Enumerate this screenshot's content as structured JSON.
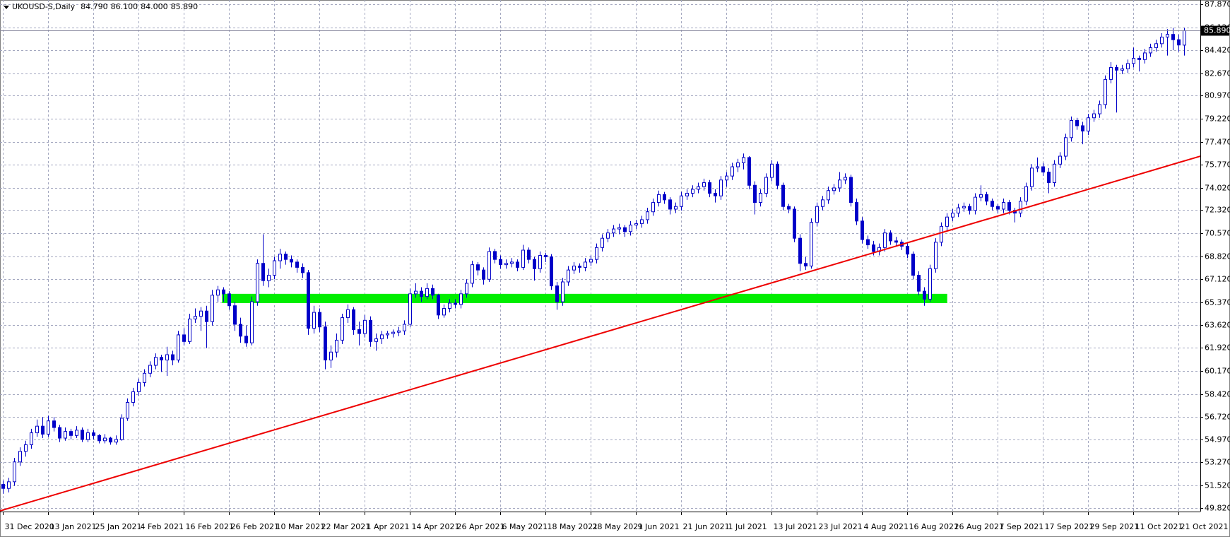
{
  "chart_data": {
    "type": "candlestick",
    "title": "UKOUSD-S,Daily",
    "header_labels": [
      "84.790",
      "86.100",
      "84.000",
      "85.890"
    ],
    "candles": [
      [
        51.6,
        51.9,
        50.9,
        51.3
      ],
      [
        51.3,
        52.1,
        51.0,
        51.8
      ],
      [
        51.8,
        53.6,
        51.5,
        53.3
      ],
      [
        53.3,
        54.4,
        53.0,
        54.1
      ],
      [
        54.1,
        54.9,
        53.7,
        54.6
      ],
      [
        54.6,
        55.8,
        54.3,
        55.5
      ],
      [
        55.5,
        56.5,
        55.2,
        56.0
      ],
      [
        56.0,
        56.7,
        55.1,
        55.4
      ],
      [
        55.4,
        56.8,
        55.2,
        56.4
      ],
      [
        56.4,
        56.7,
        55.6,
        55.9
      ],
      [
        55.9,
        56.1,
        54.8,
        55.1
      ],
      [
        55.1,
        55.9,
        54.9,
        55.6
      ],
      [
        55.6,
        55.8,
        55.0,
        55.3
      ],
      [
        55.3,
        56.0,
        55.1,
        55.7
      ],
      [
        55.7,
        55.9,
        54.8,
        55.0
      ],
      [
        55.0,
        55.8,
        54.8,
        55.5
      ],
      [
        55.5,
        55.7,
        55.0,
        55.3
      ],
      [
        55.3,
        55.4,
        54.7,
        54.9
      ],
      [
        54.9,
        55.4,
        54.7,
        55.1
      ],
      [
        55.1,
        55.2,
        54.6,
        54.8
      ],
      [
        54.8,
        55.3,
        54.6,
        55.0
      ],
      [
        55.0,
        56.9,
        54.9,
        56.6
      ],
      [
        56.6,
        58.1,
        56.4,
        57.8
      ],
      [
        57.8,
        58.9,
        57.5,
        58.6
      ],
      [
        58.6,
        59.6,
        58.3,
        59.3
      ],
      [
        59.3,
        60.3,
        59.0,
        60.0
      ],
      [
        60.0,
        60.9,
        59.7,
        60.6
      ],
      [
        60.6,
        61.5,
        60.3,
        61.2
      ],
      [
        61.2,
        61.4,
        60.1,
        61.0
      ],
      [
        61.0,
        62.0,
        59.8,
        61.4
      ],
      [
        61.4,
        61.7,
        60.6,
        61.0
      ],
      [
        61.0,
        63.2,
        60.8,
        62.9
      ],
      [
        62.9,
        63.4,
        62.1,
        62.4
      ],
      [
        62.4,
        64.5,
        62.2,
        64.1
      ],
      [
        64.1,
        64.9,
        63.8,
        64.3
      ],
      [
        64.3,
        65.0,
        63.2,
        64.7
      ],
      [
        64.7,
        65.1,
        61.9,
        63.9
      ],
      [
        63.9,
        66.3,
        63.6,
        65.9
      ],
      [
        65.9,
        66.6,
        65.4,
        66.3
      ],
      [
        66.3,
        66.5,
        65.4,
        66.0
      ],
      [
        66.0,
        66.2,
        64.8,
        65.1
      ],
      [
        65.1,
        65.4,
        63.2,
        63.7
      ],
      [
        63.7,
        64.2,
        62.3,
        62.8
      ],
      [
        62.8,
        63.6,
        62.0,
        62.3
      ],
      [
        62.3,
        65.8,
        62.1,
        65.4
      ],
      [
        65.4,
        68.6,
        65.1,
        68.3
      ],
      [
        68.3,
        70.5,
        66.6,
        67.0
      ],
      [
        67.0,
        67.9,
        66.5,
        67.4
      ],
      [
        67.4,
        68.8,
        67.1,
        68.5
      ],
      [
        68.5,
        69.4,
        67.9,
        69.0
      ],
      [
        69.0,
        69.2,
        68.2,
        68.6
      ],
      [
        68.6,
        68.9,
        68.0,
        68.4
      ],
      [
        68.4,
        68.6,
        67.6,
        68.0
      ],
      [
        68.0,
        68.3,
        67.2,
        67.6
      ],
      [
        67.6,
        67.8,
        62.9,
        63.4
      ],
      [
        63.4,
        65.1,
        63.0,
        64.6
      ],
      [
        64.6,
        64.9,
        63.1,
        63.5
      ],
      [
        63.5,
        63.9,
        60.3,
        61.0
      ],
      [
        61.0,
        62.1,
        60.4,
        61.6
      ],
      [
        61.6,
        63.0,
        61.2,
        62.5
      ],
      [
        62.5,
        64.5,
        62.2,
        64.2
      ],
      [
        64.2,
        65.2,
        63.8,
        64.8
      ],
      [
        64.8,
        65.0,
        62.9,
        63.3
      ],
      [
        63.3,
        63.9,
        62.1,
        63.0
      ],
      [
        63.0,
        64.4,
        62.7,
        64.0
      ],
      [
        64.0,
        64.3,
        62.0,
        62.4
      ],
      [
        62.4,
        63.0,
        61.7,
        62.6
      ],
      [
        62.6,
        63.2,
        62.2,
        62.9
      ],
      [
        62.9,
        63.2,
        62.6,
        63.0
      ],
      [
        63.0,
        63.3,
        62.7,
        63.1
      ],
      [
        63.1,
        63.5,
        62.8,
        63.2
      ],
      [
        63.2,
        64.0,
        62.9,
        63.7
      ],
      [
        63.7,
        66.4,
        63.5,
        66.0
      ],
      [
        66.0,
        66.8,
        65.7,
        66.2
      ],
      [
        66.2,
        66.5,
        65.4,
        65.8
      ],
      [
        65.8,
        66.8,
        65.6,
        66.4
      ],
      [
        66.4,
        66.7,
        65.6,
        65.9
      ],
      [
        65.9,
        66.0,
        64.1,
        64.4
      ],
      [
        64.4,
        65.2,
        64.2,
        64.9
      ],
      [
        64.9,
        65.6,
        64.6,
        65.3
      ],
      [
        65.3,
        65.6,
        64.9,
        65.2
      ],
      [
        65.2,
        66.3,
        64.9,
        66.0
      ],
      [
        66.0,
        67.1,
        65.7,
        66.8
      ],
      [
        66.8,
        68.5,
        66.5,
        68.2
      ],
      [
        68.2,
        68.4,
        67.4,
        67.8
      ],
      [
        67.8,
        68.0,
        66.7,
        67.1
      ],
      [
        67.1,
        69.5,
        66.9,
        69.2
      ],
      [
        69.2,
        69.4,
        68.3,
        68.6
      ],
      [
        68.6,
        68.9,
        67.9,
        68.2
      ],
      [
        68.2,
        68.6,
        67.9,
        68.3
      ],
      [
        68.3,
        68.7,
        68.0,
        68.4
      ],
      [
        68.4,
        68.6,
        67.7,
        68.0
      ],
      [
        68.0,
        69.7,
        67.8,
        69.3
      ],
      [
        69.3,
        69.5,
        68.3,
        68.6
      ],
      [
        68.6,
        68.8,
        67.0,
        67.9
      ],
      [
        67.9,
        69.2,
        67.6,
        68.9
      ],
      [
        68.9,
        69.1,
        68.4,
        68.8
      ],
      [
        68.8,
        69.0,
        66.3,
        66.6
      ],
      [
        66.6,
        66.9,
        64.8,
        65.4
      ],
      [
        65.4,
        67.2,
        65.1,
        66.9
      ],
      [
        66.9,
        68.1,
        66.6,
        67.8
      ],
      [
        67.8,
        68.4,
        67.5,
        68.1
      ],
      [
        68.1,
        68.3,
        67.6,
        68.0
      ],
      [
        68.0,
        68.7,
        67.7,
        68.4
      ],
      [
        68.4,
        68.9,
        68.1,
        68.6
      ],
      [
        68.6,
        69.8,
        68.3,
        69.5
      ],
      [
        69.5,
        70.5,
        69.2,
        70.2
      ],
      [
        70.2,
        70.9,
        69.9,
        70.6
      ],
      [
        70.6,
        71.2,
        70.3,
        70.9
      ],
      [
        70.9,
        71.3,
        70.5,
        71.0
      ],
      [
        71.0,
        71.2,
        70.3,
        70.7
      ],
      [
        70.7,
        71.5,
        70.4,
        71.2
      ],
      [
        71.2,
        71.6,
        70.9,
        71.3
      ],
      [
        71.3,
        71.9,
        71.0,
        71.6
      ],
      [
        71.6,
        72.5,
        71.3,
        72.2
      ],
      [
        72.2,
        73.2,
        71.9,
        72.9
      ],
      [
        72.9,
        73.8,
        72.6,
        73.5
      ],
      [
        73.5,
        73.7,
        72.8,
        73.1
      ],
      [
        73.1,
        73.3,
        72.0,
        72.4
      ],
      [
        72.4,
        72.9,
        72.1,
        72.6
      ],
      [
        72.6,
        73.7,
        72.3,
        73.4
      ],
      [
        73.4,
        73.9,
        73.1,
        73.6
      ],
      [
        73.6,
        74.2,
        73.3,
        73.9
      ],
      [
        73.9,
        74.4,
        73.6,
        74.1
      ],
      [
        74.1,
        74.7,
        73.8,
        74.4
      ],
      [
        74.4,
        74.6,
        73.3,
        73.6
      ],
      [
        73.6,
        73.9,
        72.9,
        73.4
      ],
      [
        73.4,
        74.9,
        73.1,
        74.6
      ],
      [
        74.6,
        75.2,
        74.1,
        74.9
      ],
      [
        74.9,
        75.9,
        74.6,
        75.6
      ],
      [
        75.6,
        76.2,
        75.2,
        75.9
      ],
      [
        75.9,
        76.6,
        75.4,
        76.3
      ],
      [
        76.3,
        76.4,
        73.9,
        74.2
      ],
      [
        74.2,
        74.5,
        72.0,
        72.9
      ],
      [
        72.9,
        73.9,
        72.6,
        73.6
      ],
      [
        73.6,
        75.1,
        73.3,
        74.8
      ],
      [
        74.8,
        76.1,
        74.5,
        75.8
      ],
      [
        75.8,
        76.0,
        73.9,
        74.2
      ],
      [
        74.2,
        74.4,
        72.3,
        72.6
      ],
      [
        72.6,
        72.8,
        72.1,
        72.4
      ],
      [
        72.4,
        72.6,
        69.9,
        70.2
      ],
      [
        70.2,
        70.5,
        67.7,
        68.3
      ],
      [
        68.3,
        68.8,
        67.8,
        68.1
      ],
      [
        68.1,
        71.7,
        67.9,
        71.4
      ],
      [
        71.4,
        72.9,
        71.1,
        72.6
      ],
      [
        72.6,
        73.4,
        72.3,
        73.1
      ],
      [
        73.1,
        74.1,
        72.8,
        73.8
      ],
      [
        73.8,
        74.3,
        73.5,
        74.0
      ],
      [
        74.0,
        75.2,
        73.7,
        74.6
      ],
      [
        74.6,
        75.1,
        74.3,
        74.8
      ],
      [
        74.8,
        75.0,
        72.6,
        72.9
      ],
      [
        72.9,
        73.2,
        71.2,
        71.5
      ],
      [
        71.5,
        71.8,
        69.8,
        70.1
      ],
      [
        70.1,
        70.4,
        69.4,
        69.7
      ],
      [
        69.7,
        70.0,
        68.9,
        69.2
      ],
      [
        69.2,
        69.8,
        68.9,
        69.5
      ],
      [
        69.5,
        70.9,
        69.2,
        70.6
      ],
      [
        70.6,
        70.8,
        69.7,
        70.0
      ],
      [
        70.0,
        70.3,
        69.6,
        69.9
      ],
      [
        69.9,
        70.1,
        69.3,
        69.6
      ],
      [
        69.6,
        69.8,
        68.7,
        69.0
      ],
      [
        69.0,
        69.2,
        67.1,
        67.4
      ],
      [
        67.4,
        67.7,
        65.9,
        66.2
      ],
      [
        66.2,
        66.5,
        65.1,
        65.6
      ],
      [
        65.6,
        68.2,
        65.4,
        67.9
      ],
      [
        67.9,
        70.2,
        67.6,
        69.9
      ],
      [
        69.9,
        71.4,
        69.6,
        71.1
      ],
      [
        71.1,
        72.1,
        70.8,
        71.8
      ],
      [
        71.8,
        72.4,
        71.5,
        72.1
      ],
      [
        72.1,
        72.8,
        71.8,
        72.5
      ],
      [
        72.5,
        72.9,
        72.2,
        72.6
      ],
      [
        72.6,
        72.8,
        72.0,
        72.3
      ],
      [
        72.3,
        73.6,
        72.0,
        73.3
      ],
      [
        73.3,
        74.2,
        73.0,
        73.5
      ],
      [
        73.5,
        73.7,
        72.7,
        73.0
      ],
      [
        73.0,
        73.2,
        72.3,
        72.6
      ],
      [
        72.6,
        72.8,
        72.1,
        72.4
      ],
      [
        72.4,
        73.2,
        72.1,
        72.9
      ],
      [
        72.9,
        73.1,
        72.0,
        72.3
      ],
      [
        72.3,
        72.5,
        71.4,
        72.1
      ],
      [
        72.1,
        73.3,
        71.8,
        73.0
      ],
      [
        73.0,
        74.4,
        72.7,
        74.1
      ],
      [
        74.1,
        75.8,
        73.8,
        75.5
      ],
      [
        75.5,
        76.3,
        75.2,
        75.6
      ],
      [
        75.6,
        75.9,
        74.9,
        75.2
      ],
      [
        75.2,
        75.5,
        73.6,
        74.4
      ],
      [
        74.4,
        76.1,
        74.1,
        75.8
      ],
      [
        75.8,
        76.7,
        75.5,
        76.4
      ],
      [
        76.4,
        78.1,
        76.1,
        77.8
      ],
      [
        77.8,
        79.4,
        77.5,
        79.1
      ],
      [
        79.1,
        79.3,
        78.4,
        78.7
      ],
      [
        78.7,
        79.0,
        77.3,
        78.3
      ],
      [
        78.3,
        79.6,
        78.0,
        79.3
      ],
      [
        79.3,
        79.9,
        79.0,
        79.6
      ],
      [
        79.6,
        80.6,
        79.3,
        80.3
      ],
      [
        80.3,
        82.5,
        80.0,
        82.2
      ],
      [
        82.2,
        83.5,
        81.9,
        83.1
      ],
      [
        83.1,
        83.3,
        79.7,
        82.9
      ],
      [
        82.9,
        83.3,
        82.6,
        83.0
      ],
      [
        83.0,
        83.7,
        82.7,
        83.4
      ],
      [
        83.4,
        84.6,
        83.1,
        83.8
      ],
      [
        83.8,
        84.0,
        82.8,
        83.7
      ],
      [
        83.7,
        84.5,
        83.4,
        84.2
      ],
      [
        84.2,
        84.9,
        83.9,
        84.6
      ],
      [
        84.6,
        85.2,
        84.3,
        84.9
      ],
      [
        84.9,
        85.7,
        84.6,
        85.4
      ],
      [
        85.4,
        86.0,
        84.0,
        85.6
      ],
      [
        85.6,
        86.1,
        84.4,
        85.2
      ],
      [
        85.2,
        85.6,
        84.3,
        84.8
      ],
      [
        84.79,
        86.1,
        84.0,
        85.89
      ]
    ],
    "xlim": [
      -0.55,
      211.9
    ],
    "xticks": [
      {
        "value": 0,
        "label": "31 Dec 2020"
      },
      {
        "value": 8,
        "label": "13 Jan 2021"
      },
      {
        "value": 16,
        "label": "25 Jan 2021"
      },
      {
        "value": 24,
        "label": "4 Feb 2021"
      },
      {
        "value": 32,
        "label": "16 Feb 2021"
      },
      {
        "value": 40,
        "label": "26 Feb 2021"
      },
      {
        "value": 48,
        "label": "10 Mar 2021"
      },
      {
        "value": 56,
        "label": "22 Mar 2021"
      },
      {
        "value": 64,
        "label": "1 Apr 2021"
      },
      {
        "value": 72,
        "label": "14 Apr 2021"
      },
      {
        "value": 80,
        "label": "26 Apr 2021"
      },
      {
        "value": 88,
        "label": "6 May 2021"
      },
      {
        "value": 96,
        "label": "18 May 2021"
      },
      {
        "value": 104,
        "label": "28 May 2021"
      },
      {
        "value": 112,
        "label": "9 Jun 2021"
      },
      {
        "value": 120,
        "label": "21 Jun 2021"
      },
      {
        "value": 128,
        "label": "1 Jul 2021"
      },
      {
        "value": 136,
        "label": "13 Jul 2021"
      },
      {
        "value": 144,
        "label": "23 Jul 2021"
      },
      {
        "value": 152,
        "label": "4 Aug 2021"
      },
      {
        "value": 160,
        "label": "16 Aug 2021"
      },
      {
        "value": 168,
        "label": "26 Aug 2021"
      },
      {
        "value": 176,
        "label": "7 Sep 2021"
      },
      {
        "value": 184,
        "label": "17 Sep 2021"
      },
      {
        "value": 192,
        "label": "29 Sep 2021"
      },
      {
        "value": 200,
        "label": "11 Oct 2021"
      },
      {
        "value": 208,
        "label": "21 Oct 2021"
      }
    ],
    "ylim": [
      49.55,
      88.2
    ],
    "yticks": [
      {
        "value": 49.82,
        "label": "49.820"
      },
      {
        "value": 51.52,
        "label": "51.520"
      },
      {
        "value": 53.27,
        "label": "53.270"
      },
      {
        "value": 54.97,
        "label": "54.970"
      },
      {
        "value": 56.72,
        "label": "56.720"
      },
      {
        "value": 58.42,
        "label": "58.420"
      },
      {
        "value": 60.17,
        "label": "60.170"
      },
      {
        "value": 61.92,
        "label": "61.920"
      },
      {
        "value": 63.62,
        "label": "63.620"
      },
      {
        "value": 65.37,
        "label": "65.370"
      },
      {
        "value": 67.12,
        "label": "67.120"
      },
      {
        "value": 68.82,
        "label": "68.820"
      },
      {
        "value": 70.57,
        "label": "70.570"
      },
      {
        "value": 72.32,
        "label": "72.320"
      },
      {
        "value": 74.02,
        "label": "74.020"
      },
      {
        "value": 75.77,
        "label": "75.770"
      },
      {
        "value": 77.47,
        "label": "77.470"
      },
      {
        "value": 79.22,
        "label": "79.220"
      },
      {
        "value": 80.97,
        "label": "80.970"
      },
      {
        "value": 82.67,
        "label": "82.670"
      },
      {
        "value": 84.42,
        "label": "84.420"
      },
      {
        "value": 86.12,
        "label": "86.120"
      },
      {
        "value": 87.87,
        "label": "87.870"
      }
    ],
    "grid": true,
    "colors": {
      "up": "#ffffff",
      "down": "#0000c8",
      "outline": "#0000c8"
    },
    "trendline": {
      "x": [
        -0.55,
        211.9
      ],
      "y": [
        49.6,
        76.4
      ],
      "color": "#ee0000"
    },
    "zone": {
      "x": [
        38.75,
        167.1
      ],
      "y": [
        65.3,
        66.0
      ],
      "color": "#00ee00"
    },
    "last_price": {
      "value": 85.89,
      "label": "85.890"
    }
  }
}
